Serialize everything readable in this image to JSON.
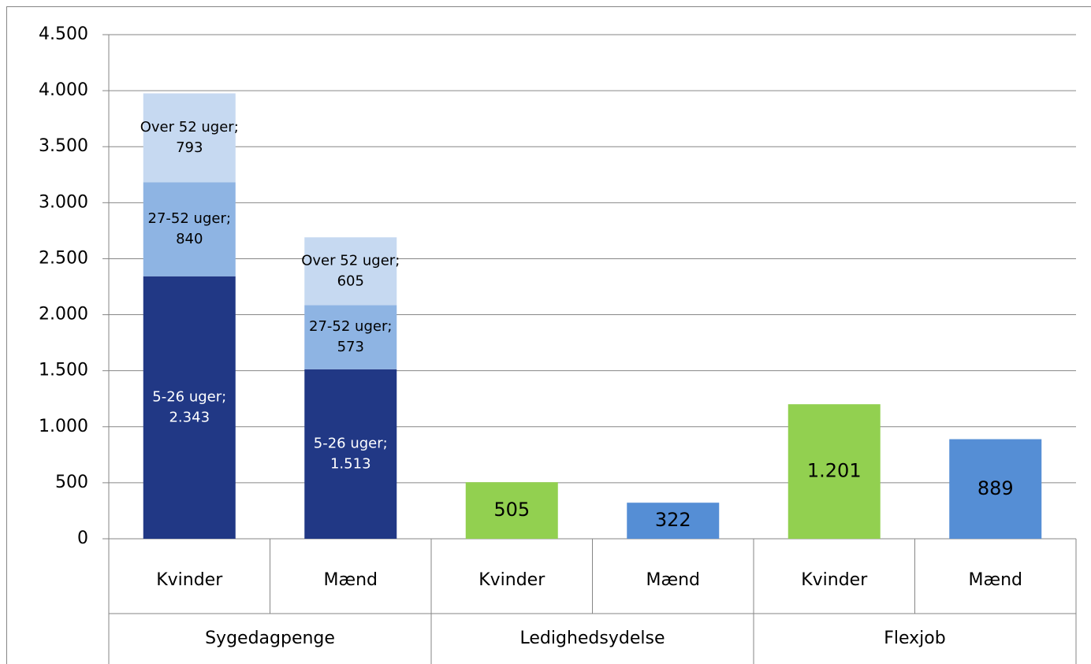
{
  "chart_data": {
    "type": "stacked_bar",
    "categories": [
      "Kvinder",
      "Mænd",
      "Kvinder",
      "Mænd",
      "Kvinder",
      "Mænd"
    ],
    "groups": [
      "Sygedagpenge",
      null,
      "Ledighedsydelse",
      null,
      "Flexjob",
      null
    ],
    "label_separator": ";",
    "series": [
      {
        "name": "5-26 uger",
        "color": "#213885",
        "label_color": "#ffffff",
        "values": [
          2343,
          1513,
          null,
          null,
          null,
          null
        ],
        "value_labels": [
          "2.343",
          "1.513",
          null,
          null,
          null,
          null
        ]
      },
      {
        "name": "27-52 uger",
        "color": "#8eb4e3",
        "label_color": "#000000",
        "values": [
          840,
          573,
          null,
          null,
          null,
          null
        ]
      },
      {
        "name": "Over 52 uger",
        "color": "#c6d9f1",
        "label_color": "#000000",
        "values": [
          793,
          605,
          null,
          null,
          null,
          null
        ]
      },
      {
        "colors": [
          null,
          null,
          "#92d050",
          "#558ed5",
          "#92d050",
          "#558ed5"
        ],
        "label_color": "#000000",
        "values": [
          null,
          null,
          505,
          322,
          1201,
          889
        ],
        "value_labels": [
          null,
          null,
          "505",
          "322",
          "1.201",
          "889"
        ]
      }
    ],
    "ylim": [
      0,
      4500
    ],
    "yticks": [
      0,
      500,
      {
        "value": 1000,
        "label": "1.000"
      },
      {
        "value": 1500,
        "label": "1.500"
      },
      {
        "value": 2000,
        "label": "2.000"
      },
      {
        "value": 2500,
        "label": "2.500"
      },
      {
        "value": 3000,
        "label": "3.000"
      },
      {
        "value": 3500,
        "label": "3.500"
      },
      {
        "value": 4000,
        "label": "4.000"
      },
      {
        "value": 4500,
        "label": "4.500"
      }
    ],
    "grid": true
  }
}
